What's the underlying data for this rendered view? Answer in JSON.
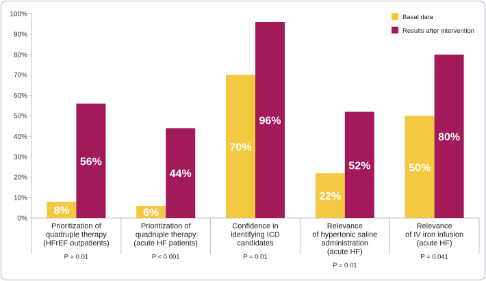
{
  "chart_data": {
    "type": "bar",
    "title": "",
    "xlabel": "",
    "ylabel": "",
    "ylim": [
      0,
      100
    ],
    "yticks": [
      "0%",
      "10%",
      "20%",
      "30%",
      "40%",
      "50%",
      "60%",
      "70%",
      "80%",
      "90%",
      "100%"
    ],
    "legend_position": "top-right",
    "categories": [
      [
        "Prioritization of",
        "quadruple therapy",
        "(HFrEF outpatients)"
      ],
      [
        "Prioritization of",
        "quadruple therapy",
        "(acute HF patients)"
      ],
      [
        "Confidence in",
        "identifying ICD",
        "candidates"
      ],
      [
        "Relevance",
        "of hypertonic saline",
        "administration",
        "(acute HF)"
      ],
      [
        "Relevance",
        "of IV iron infusion",
        "(acute HF)"
      ]
    ],
    "p_values": [
      "P = 0.01",
      "P < 0.001",
      "P = 0.01",
      "P = 0.01",
      "P = 0.041"
    ],
    "series": [
      {
        "name": "Basal data",
        "color": "#f5c842",
        "values": [
          8,
          6,
          70,
          22,
          50
        ],
        "labels": [
          "8%",
          "6%",
          "70%",
          "22%",
          "50%"
        ]
      },
      {
        "name": "Results after intervention",
        "color": "#a31a5a",
        "values": [
          56,
          44,
          96,
          52,
          80
        ],
        "labels": [
          "56%",
          "44%",
          "96%",
          "52%",
          "80%"
        ]
      }
    ]
  }
}
